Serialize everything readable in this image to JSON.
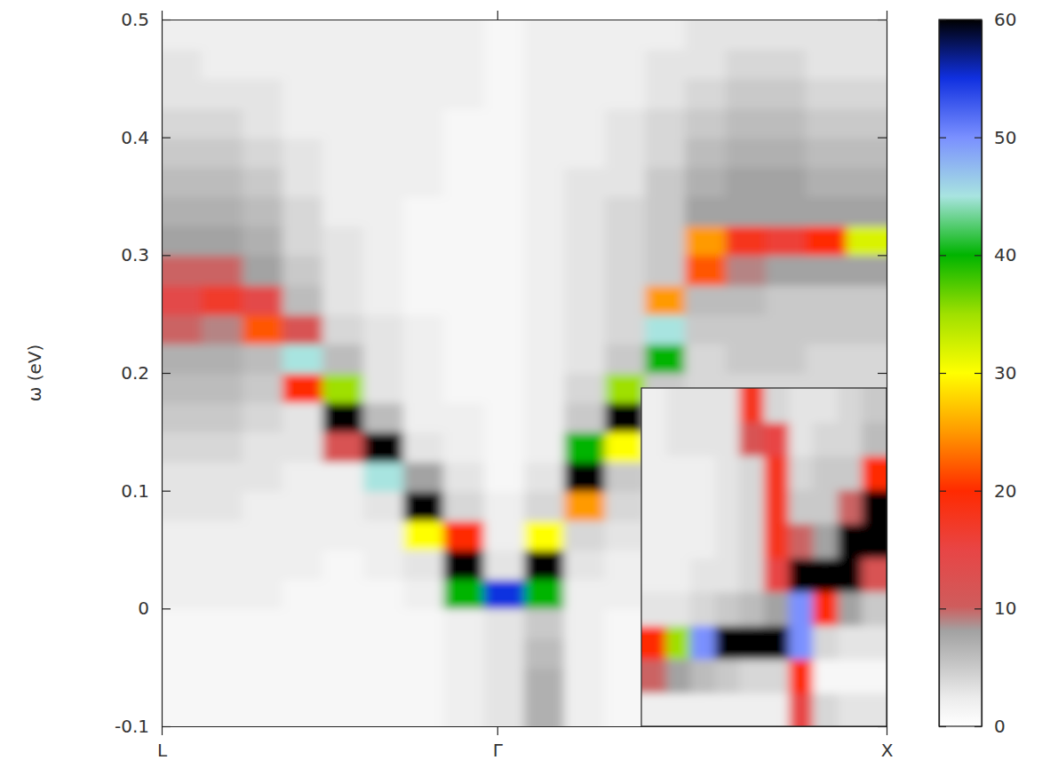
{
  "chart_data": [
    {
      "type": "heatmap",
      "y_label": "ω (eV)",
      "x": [
        0.06,
        0.18,
        0.3,
        0.42,
        0.54,
        0.66,
        0.78,
        0.9,
        1.02,
        1.14,
        1.26,
        1.38,
        1.5,
        1.62,
        1.74,
        1.86,
        1.98,
        2.1
      ],
      "y": [
        -0.0875,
        -0.0625,
        -0.0375,
        -0.0125,
        0.0125,
        0.0375,
        0.0625,
        0.0875,
        0.1125,
        0.1375,
        0.1625,
        0.1875,
        0.2125,
        0.2375,
        0.2625,
        0.2875,
        0.3125,
        0.3375,
        0.3625,
        0.3875,
        0.4125,
        0.4375,
        0.4625,
        0.4875
      ],
      "values": [
        [
          1,
          1,
          1,
          1,
          2,
          2,
          2,
          3,
          3,
          4,
          5,
          6,
          7,
          10,
          14,
          10,
          8,
          7,
          6,
          5,
          4,
          3,
          3,
          2
        ],
        [
          1,
          1,
          1,
          1,
          2,
          2,
          2,
          3,
          3,
          4,
          5,
          6,
          7,
          9,
          17,
          10,
          8,
          7,
          6,
          5,
          4,
          3,
          2,
          2
        ],
        [
          1,
          1,
          1,
          1,
          2,
          2,
          2,
          2,
          3,
          3,
          4,
          5,
          6,
          22,
          14,
          8,
          7,
          6,
          5,
          4,
          3,
          3,
          2,
          2
        ],
        [
          1,
          1,
          1,
          1,
          1,
          2,
          2,
          2,
          2,
          3,
          3,
          20,
          45,
          12,
          6,
          5,
          4,
          4,
          3,
          3,
          2,
          2,
          2,
          2
        ],
        [
          1,
          1,
          1,
          1,
          1,
          1,
          2,
          2,
          2,
          12,
          60,
          35,
          6,
          4,
          3,
          3,
          3,
          2,
          2,
          2,
          2,
          2,
          2,
          2
        ],
        [
          1,
          1,
          1,
          1,
          1,
          2,
          2,
          3,
          45,
          60,
          6,
          3,
          3,
          3,
          2,
          2,
          2,
          2,
          2,
          2,
          2,
          2,
          2,
          2
        ],
        [
          1,
          1,
          1,
          1,
          2,
          3,
          30,
          60,
          8,
          3,
          2,
          2,
          2,
          2,
          1,
          1,
          1,
          1,
          2,
          2,
          2,
          2,
          2,
          2
        ],
        [
          2,
          2,
          2,
          2,
          40,
          60,
          20,
          4,
          3,
          2,
          2,
          1,
          1,
          1,
          1,
          1,
          1,
          1,
          1,
          1,
          1,
          2,
          2,
          2
        ],
        [
          3,
          3,
          3,
          3,
          55,
          3,
          2,
          2,
          1,
          1,
          1,
          1,
          1,
          1,
          1,
          1,
          1,
          1,
          1,
          1,
          1,
          1,
          1,
          1
        ],
        [
          7,
          7,
          6,
          5,
          40,
          60,
          30,
          4,
          3,
          2,
          2,
          2,
          2,
          2,
          2,
          2,
          2,
          2,
          2,
          2,
          2,
          2,
          2,
          2
        ],
        [
          2,
          2,
          2,
          2,
          2,
          3,
          4,
          25,
          60,
          40,
          5,
          4,
          3,
          3,
          3,
          3,
          3,
          3,
          3,
          2,
          2,
          2,
          2,
          2
        ],
        [
          1,
          1,
          1,
          1,
          2,
          2,
          3,
          4,
          5,
          30,
          60,
          35,
          5,
          4,
          4,
          4,
          4,
          4,
          3,
          3,
          3,
          2,
          2,
          2
        ],
        [
          1,
          1,
          1,
          1,
          2,
          2,
          3,
          3,
          4,
          4,
          5,
          5,
          40,
          45,
          25,
          5,
          5,
          5,
          5,
          4,
          4,
          3,
          3,
          2
        ],
        [
          1,
          1,
          1,
          1,
          2,
          2,
          3,
          3,
          3,
          4,
          4,
          4,
          4,
          5,
          6,
          22,
          25,
          8,
          7,
          6,
          5,
          4,
          3,
          3
        ],
        [
          1,
          1,
          1,
          1,
          2,
          2,
          2,
          3,
          3,
          3,
          4,
          4,
          5,
          5,
          6,
          9,
          18,
          8,
          8,
          7,
          6,
          5,
          4,
          3
        ],
        [
          1,
          1,
          1,
          1,
          2,
          2,
          2,
          3,
          3,
          3,
          4,
          4,
          5,
          5,
          5,
          8,
          16,
          8,
          8,
          7,
          6,
          5,
          4,
          3
        ],
        [
          1,
          1,
          1,
          1,
          2,
          2,
          2,
          2,
          3,
          3,
          3,
          4,
          4,
          5,
          5,
          8,
          20,
          8,
          7,
          6,
          5,
          4,
          3,
          3
        ],
        [
          1,
          1,
          1,
          1,
          2,
          2,
          2,
          2,
          3,
          3,
          3,
          4,
          4,
          5,
          5,
          8,
          32,
          8,
          7,
          6,
          5,
          4,
          3,
          3
        ]
      ],
      "xlim": [
        0,
        2.16
      ],
      "ylim": [
        -0.1,
        0.5
      ],
      "xticks": [
        {
          "value": 0,
          "label": "L"
        },
        {
          "value": 1,
          "label": "Γ"
        },
        {
          "value": 2.16,
          "label": "X"
        }
      ],
      "yticks": [
        -0.1,
        0,
        0.1,
        0.2,
        0.3,
        0.4,
        0.5
      ],
      "colorbar": {
        "range": [
          0,
          60
        ],
        "ticks": [
          0,
          10,
          20,
          30,
          40,
          50,
          60
        ]
      }
    },
    {
      "type": "heatmap",
      "x": [
        0.997,
        1.011,
        1.025,
        1.039,
        1.053,
        1.067,
        1.081,
        1.095,
        1.109,
        1.123
      ],
      "y": [
        -0.0075,
        -0.0025,
        0.0025,
        0.0075,
        0.0125,
        0.0175,
        0.0225,
        0.0275,
        0.0325,
        0.0375
      ],
      "values": [
        [
          2,
          10,
          20,
          3,
          2,
          2,
          2,
          2,
          2,
          2
        ],
        [
          2,
          8,
          35,
          3,
          2,
          2,
          2,
          2,
          3,
          3
        ],
        [
          2,
          6,
          50,
          4,
          3,
          2,
          2,
          2,
          3,
          3
        ],
        [
          2,
          5,
          60,
          5,
          3,
          3,
          3,
          3,
          3,
          3
        ],
        [
          2,
          4,
          60,
          6,
          4,
          4,
          4,
          4,
          12,
          18
        ],
        [
          2,
          4,
          60,
          8,
          15,
          18,
          18,
          18,
          15,
          4
        ],
        [
          15,
          20,
          50,
          50,
          60,
          10,
          5,
          4,
          3,
          3
        ],
        [
          4,
          1,
          4,
          20,
          60,
          8,
          5,
          5,
          4,
          3
        ],
        [
          3,
          1,
          3,
          8,
          60,
          60,
          10,
          5,
          4,
          4
        ],
        [
          3,
          1,
          3,
          5,
          12,
          60,
          60,
          20,
          6,
          5
        ]
      ],
      "xlim": [
        0.99,
        1.13
      ],
      "ylim": [
        -0.01,
        0.04
      ],
      "tick_labels": false
    }
  ]
}
